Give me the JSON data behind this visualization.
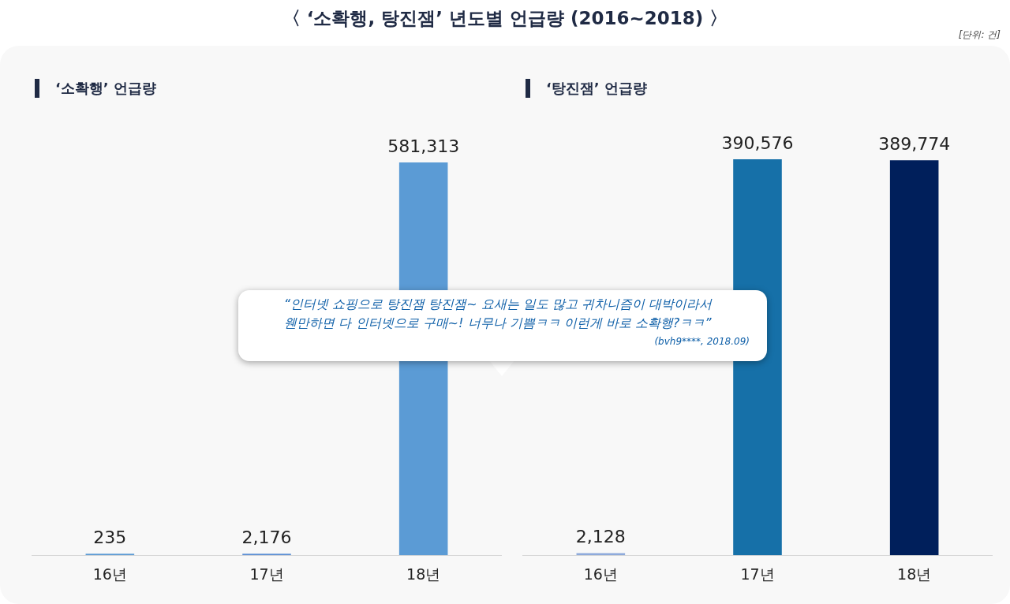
{
  "chart_data": [
    {
      "type": "bar",
      "title": "‘소확행’ 언급량",
      "categories": [
        "16년",
        "17년",
        "18년"
      ],
      "values": [
        235,
        2176,
        581313
      ],
      "value_labels": [
        "235",
        "2,176",
        "581,313"
      ],
      "colors": [
        "#5b9bd5",
        "#5b8fd5",
        "#5b9bd5"
      ],
      "grid": false,
      "legend": false,
      "annotations": [
        "〈 ‘소확행, 탕진잼’ 년도별 언급량 (2016~2018) 〉",
        "[단위: 건]"
      ]
    },
    {
      "type": "bar",
      "title": "‘탕진잼’ 언급량",
      "categories": [
        "16년",
        "17년",
        "18년"
      ],
      "values": [
        2128,
        390576,
        389774
      ],
      "value_labels": [
        "2,128",
        "390,576",
        "389,774"
      ],
      "colors": [
        "#8eaadb",
        "#1670a8",
        "#001f5b"
      ],
      "grid": false,
      "legend": false,
      "annotations": [
        "“인터넷 쇼핑으로 탕진잼 탕진잼~ 요새는 일도 많고 귀차니즘이 대박이라서\n웬만하면 다 인터넷으로 구매~! 너무나 기쁨ㅋㅋ 이런게 바로 소확행?ㅋㅋ”",
        "(bvh9****, 2018.09)"
      ]
    }
  ]
}
